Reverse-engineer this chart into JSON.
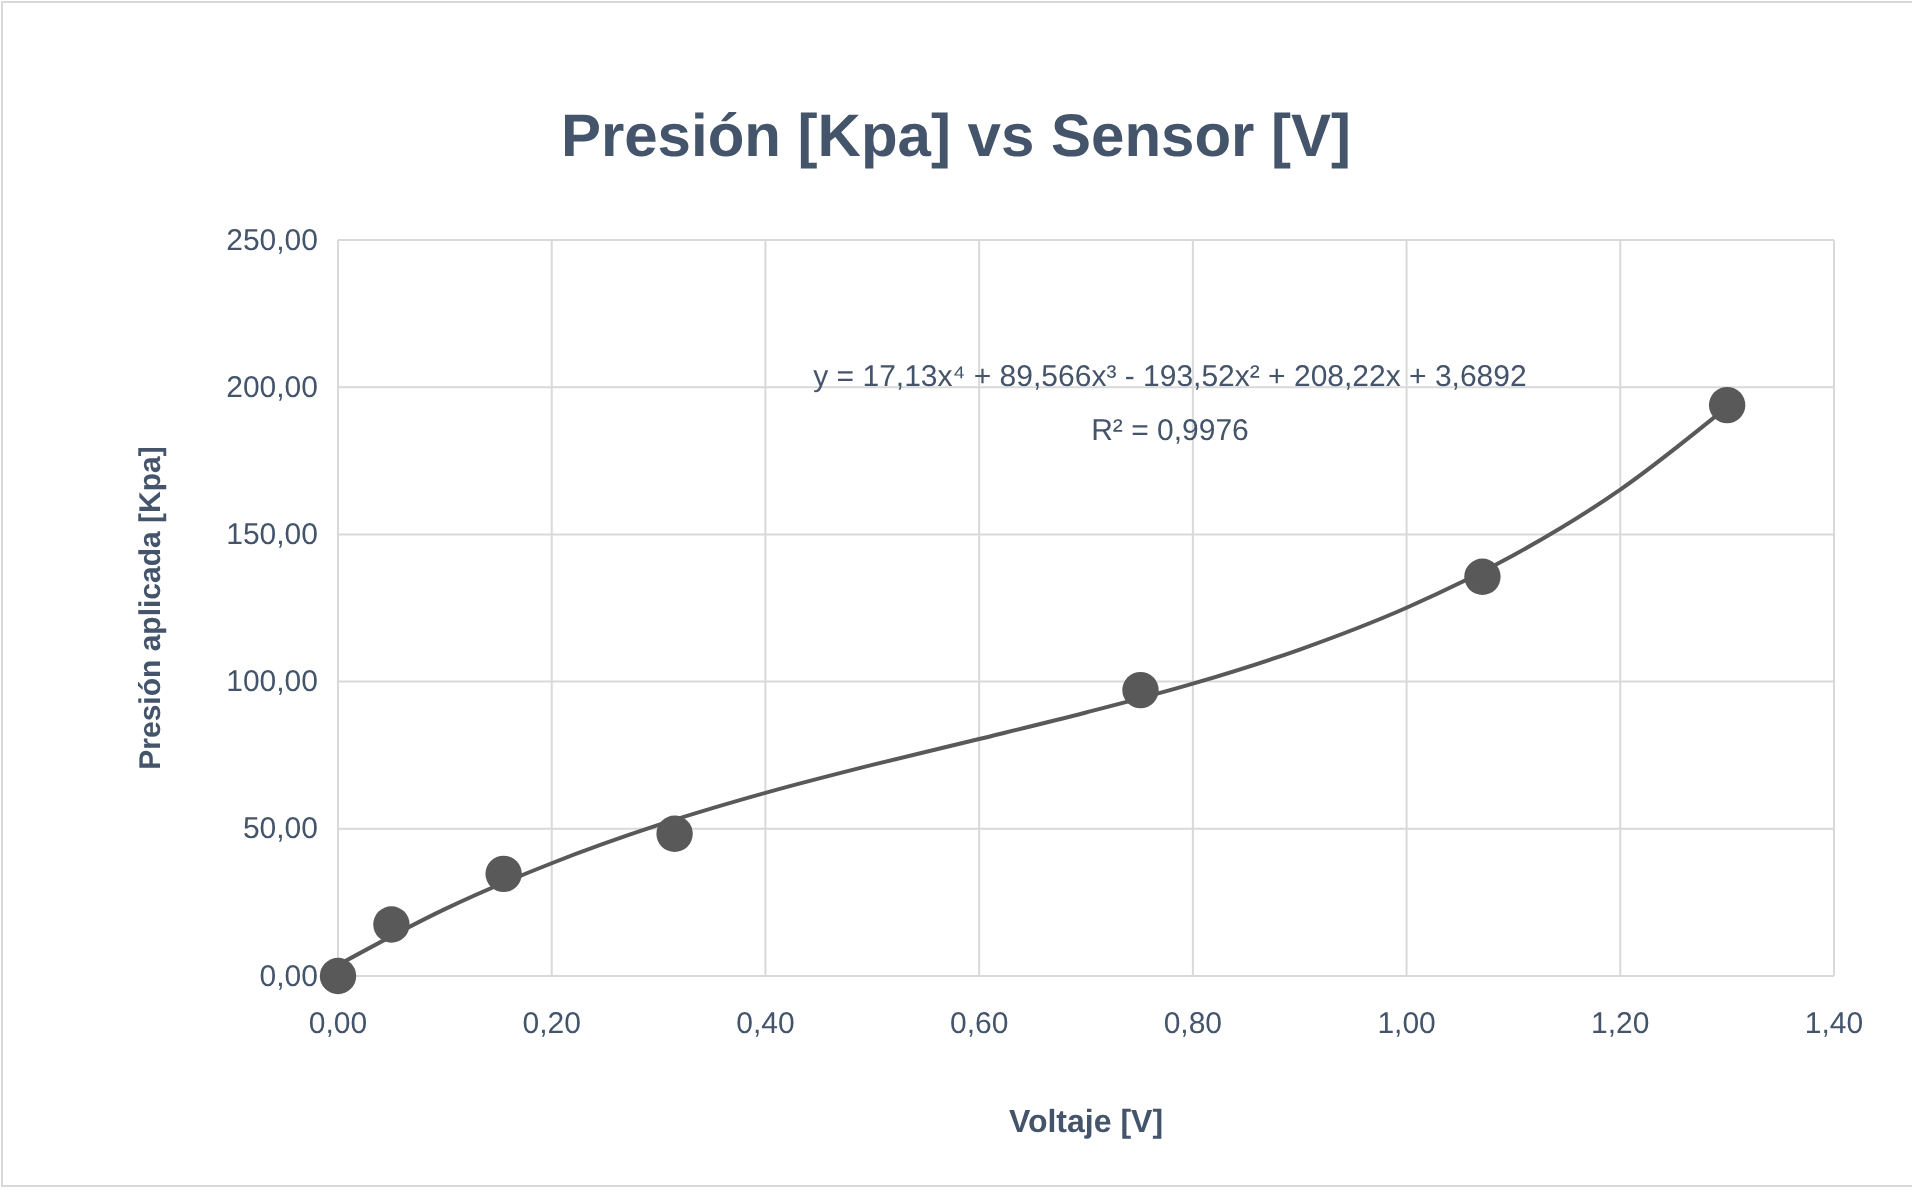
{
  "chart_data": {
    "type": "scatter",
    "title": "Presión [Kpa] vs Sensor [V]",
    "xlabel": "Voltaje [V]",
    "ylabel": "Presión aplicada [Kpa]",
    "x": [
      0,
      0.05,
      0.155,
      0.315,
      0.751,
      1.071,
      1.3
    ],
    "series": [
      {
        "color": "#595959",
        "marker": "circle",
        "values": [
          0,
          17.5,
          34.7,
          48.3,
          97.1,
          135.6,
          193.9
        ]
      },
      {
        "type": "line",
        "color": "#595959",
        "line_style": "solid",
        "marker": "none",
        "x": [
          0,
          0.1,
          0.2,
          0.3,
          0.4,
          0.5,
          0.6,
          0.7,
          0.8,
          0.9,
          1.0,
          1.1,
          1.2,
          1.3
        ],
        "values": [
          3.7,
          22.7,
          38.3,
          51.3,
          62.2,
          71.7,
          80.5,
          89.5,
          99.3,
          110.9,
          125.1,
          142.9,
          165.2,
          193.3
        ]
      }
    ],
    "annotations": [
      "y = 17,13x⁴ + 89,566x³ - 193,52x² + 208,22x + 3,6892",
      "R² = 0,9976"
    ],
    "xlim": [
      0,
      1.4
    ],
    "xticks": [
      {
        "value": 0,
        "label": "0,00"
      },
      {
        "value": 0.2,
        "label": "0,20"
      },
      {
        "value": 0.4,
        "label": "0,40"
      },
      {
        "value": 0.6,
        "label": "0,60"
      },
      {
        "value": 0.8,
        "label": "0,80"
      },
      {
        "value": 1.0,
        "label": "1,00"
      },
      {
        "value": 1.2,
        "label": "1,20"
      },
      {
        "value": 1.4,
        "label": "1,40"
      }
    ],
    "ylim": [
      0,
      250
    ],
    "yticks": [
      {
        "value": 0,
        "label": "0,00"
      },
      {
        "value": 50,
        "label": "50,00"
      },
      {
        "value": 100,
        "label": "100,00"
      },
      {
        "value": 150,
        "label": "150,00"
      },
      {
        "value": 200,
        "label": "200,00"
      },
      {
        "value": 250,
        "label": "250,00"
      }
    ],
    "grid": true
  }
}
